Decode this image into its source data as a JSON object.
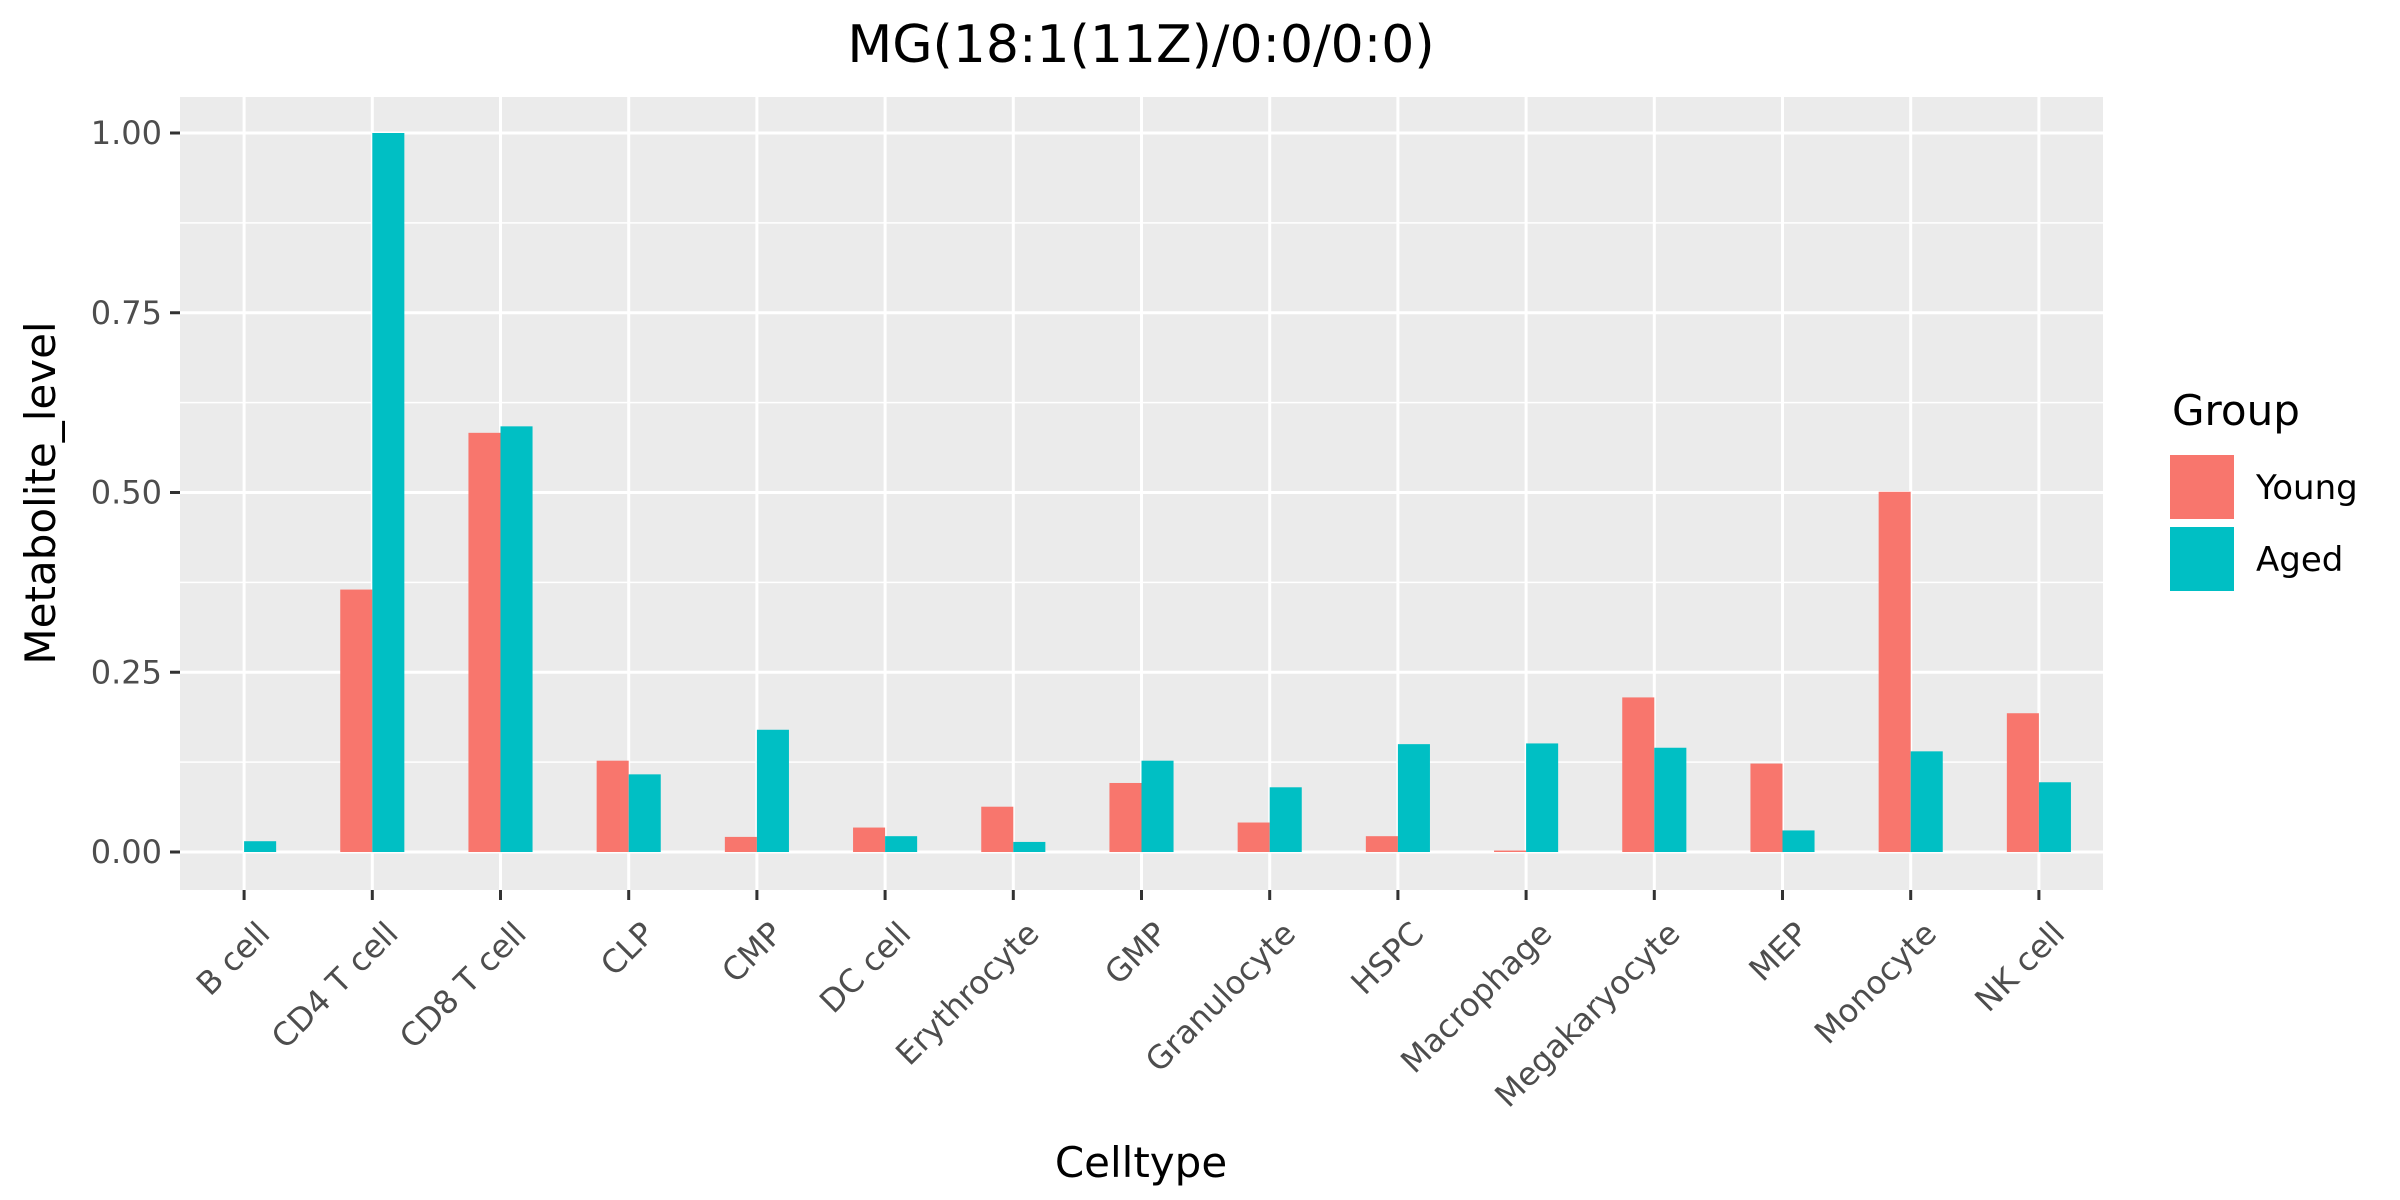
{
  "chart_data": {
    "type": "bar",
    "title": "MG(18:1(11Z)/0:0/0:0)",
    "xlabel": "Celltype",
    "ylabel": "Metabolite_level",
    "categories": [
      "B cell",
      "CD4 T cell",
      "CD8 T cell",
      "CLP",
      "CMP",
      "DC cell",
      "Erythrocyte",
      "GMP",
      "Granulocyte",
      "HSPC",
      "Macrophage",
      "Megakaryocyte",
      "MEP",
      "Monocyte",
      "NK cell"
    ],
    "series": [
      {
        "name": "Young",
        "color": "#F8766D",
        "values": [
          0.0,
          0.365,
          0.583,
          0.127,
          0.021,
          0.034,
          0.063,
          0.096,
          0.041,
          0.022,
          0.002,
          0.215,
          0.123,
          0.501,
          0.193
        ]
      },
      {
        "name": "Aged",
        "color": "#00BFC4",
        "values": [
          0.015,
          1.0,
          0.592,
          0.108,
          0.17,
          0.022,
          0.014,
          0.127,
          0.09,
          0.15,
          0.151,
          0.145,
          0.03,
          0.14,
          0.097
        ]
      }
    ],
    "yticks": [
      "0.00",
      "0.25",
      "0.50",
      "0.75",
      "1.00"
    ],
    "ylim": [
      -0.05,
      1.05
    ],
    "grid": true,
    "legend": {
      "title": "Group",
      "position": "right"
    }
  }
}
